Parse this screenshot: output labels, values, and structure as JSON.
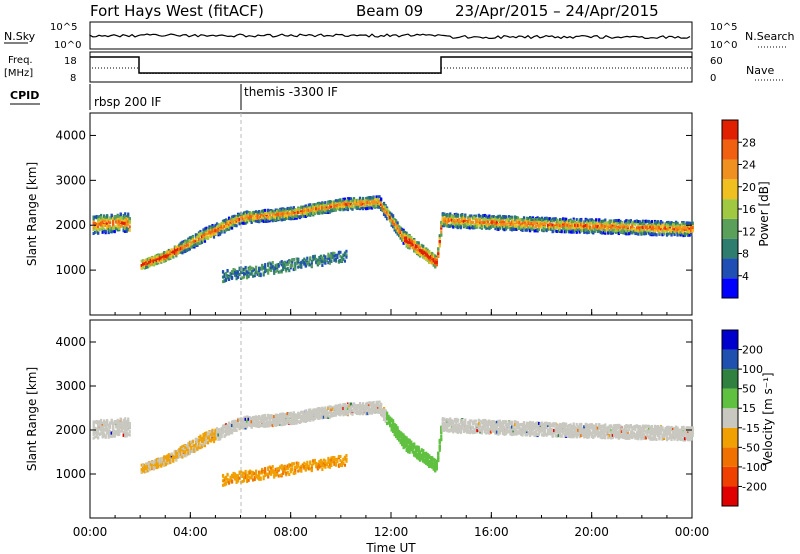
{
  "header": {
    "radar": "Fort Hays West (fitACF)",
    "beam": "Beam 09",
    "dates": "23/Apr/2015 – 24/Apr/2015"
  },
  "top_panels": {
    "nsky_label": "N.Sky",
    "nsky_ticks": [
      "10^5",
      "10^0"
    ],
    "nsearch_label": "N.Search",
    "nsearch_ticks": [
      "10^5",
      "10^0"
    ],
    "freq_label_1": "Freq.",
    "freq_label_2": "[MHz]",
    "freq_ticks": [
      "18",
      "8"
    ],
    "nave_label": "Nave",
    "nave_ticks": [
      "60",
      "0"
    ],
    "cpid_label": "CPID",
    "cpid_segments": [
      {
        "label": "rbsp 200 IF",
        "start_hour": 0
      },
      {
        "label": "themis -3300 IF",
        "start_hour": 6
      }
    ]
  },
  "colors": {
    "power_scale": [
      "#0000ff",
      "#1f4fb4",
      "#2e7d6e",
      "#5aa05a",
      "#a0c840",
      "#f0c020",
      "#f09020",
      "#f06010",
      "#e02000"
    ],
    "velocity_scale": [
      "#0000cc",
      "#2050b0",
      "#308040",
      "#60c040",
      "#c8c8c0",
      "#f0a000",
      "#f07000",
      "#f04000",
      "#e00000"
    ]
  },
  "chart_data": [
    {
      "type": "heatmap",
      "name": "power",
      "ylabel": "Slant Range [km]",
      "ylim": [
        0,
        4500
      ],
      "yticks": [
        1000,
        2000,
        3000,
        4000
      ],
      "colorbar_label": "Power [dB]",
      "colorbar_ticks": [
        "4",
        "8",
        "12",
        "16",
        "20",
        "24",
        "28"
      ],
      "colorbar_range": [
        0,
        32
      ]
    },
    {
      "type": "heatmap",
      "name": "velocity",
      "ylabel": "Slant Range [km]",
      "ylim": [
        0,
        4500
      ],
      "yticks": [
        1000,
        2000,
        3000,
        4000
      ],
      "colorbar_label": "Velocity [m s⁻¹]",
      "colorbar_ticks": [
        "-200",
        "-100",
        "-50",
        "-15",
        "15",
        "50",
        "100",
        "200"
      ]
    }
  ],
  "x_axis": {
    "label": "Time UT",
    "ticks": [
      "00:00",
      "04:00",
      "08:00",
      "12:00",
      "16:00",
      "20:00",
      "00:00"
    ],
    "range_hours": [
      0,
      24
    ]
  }
}
